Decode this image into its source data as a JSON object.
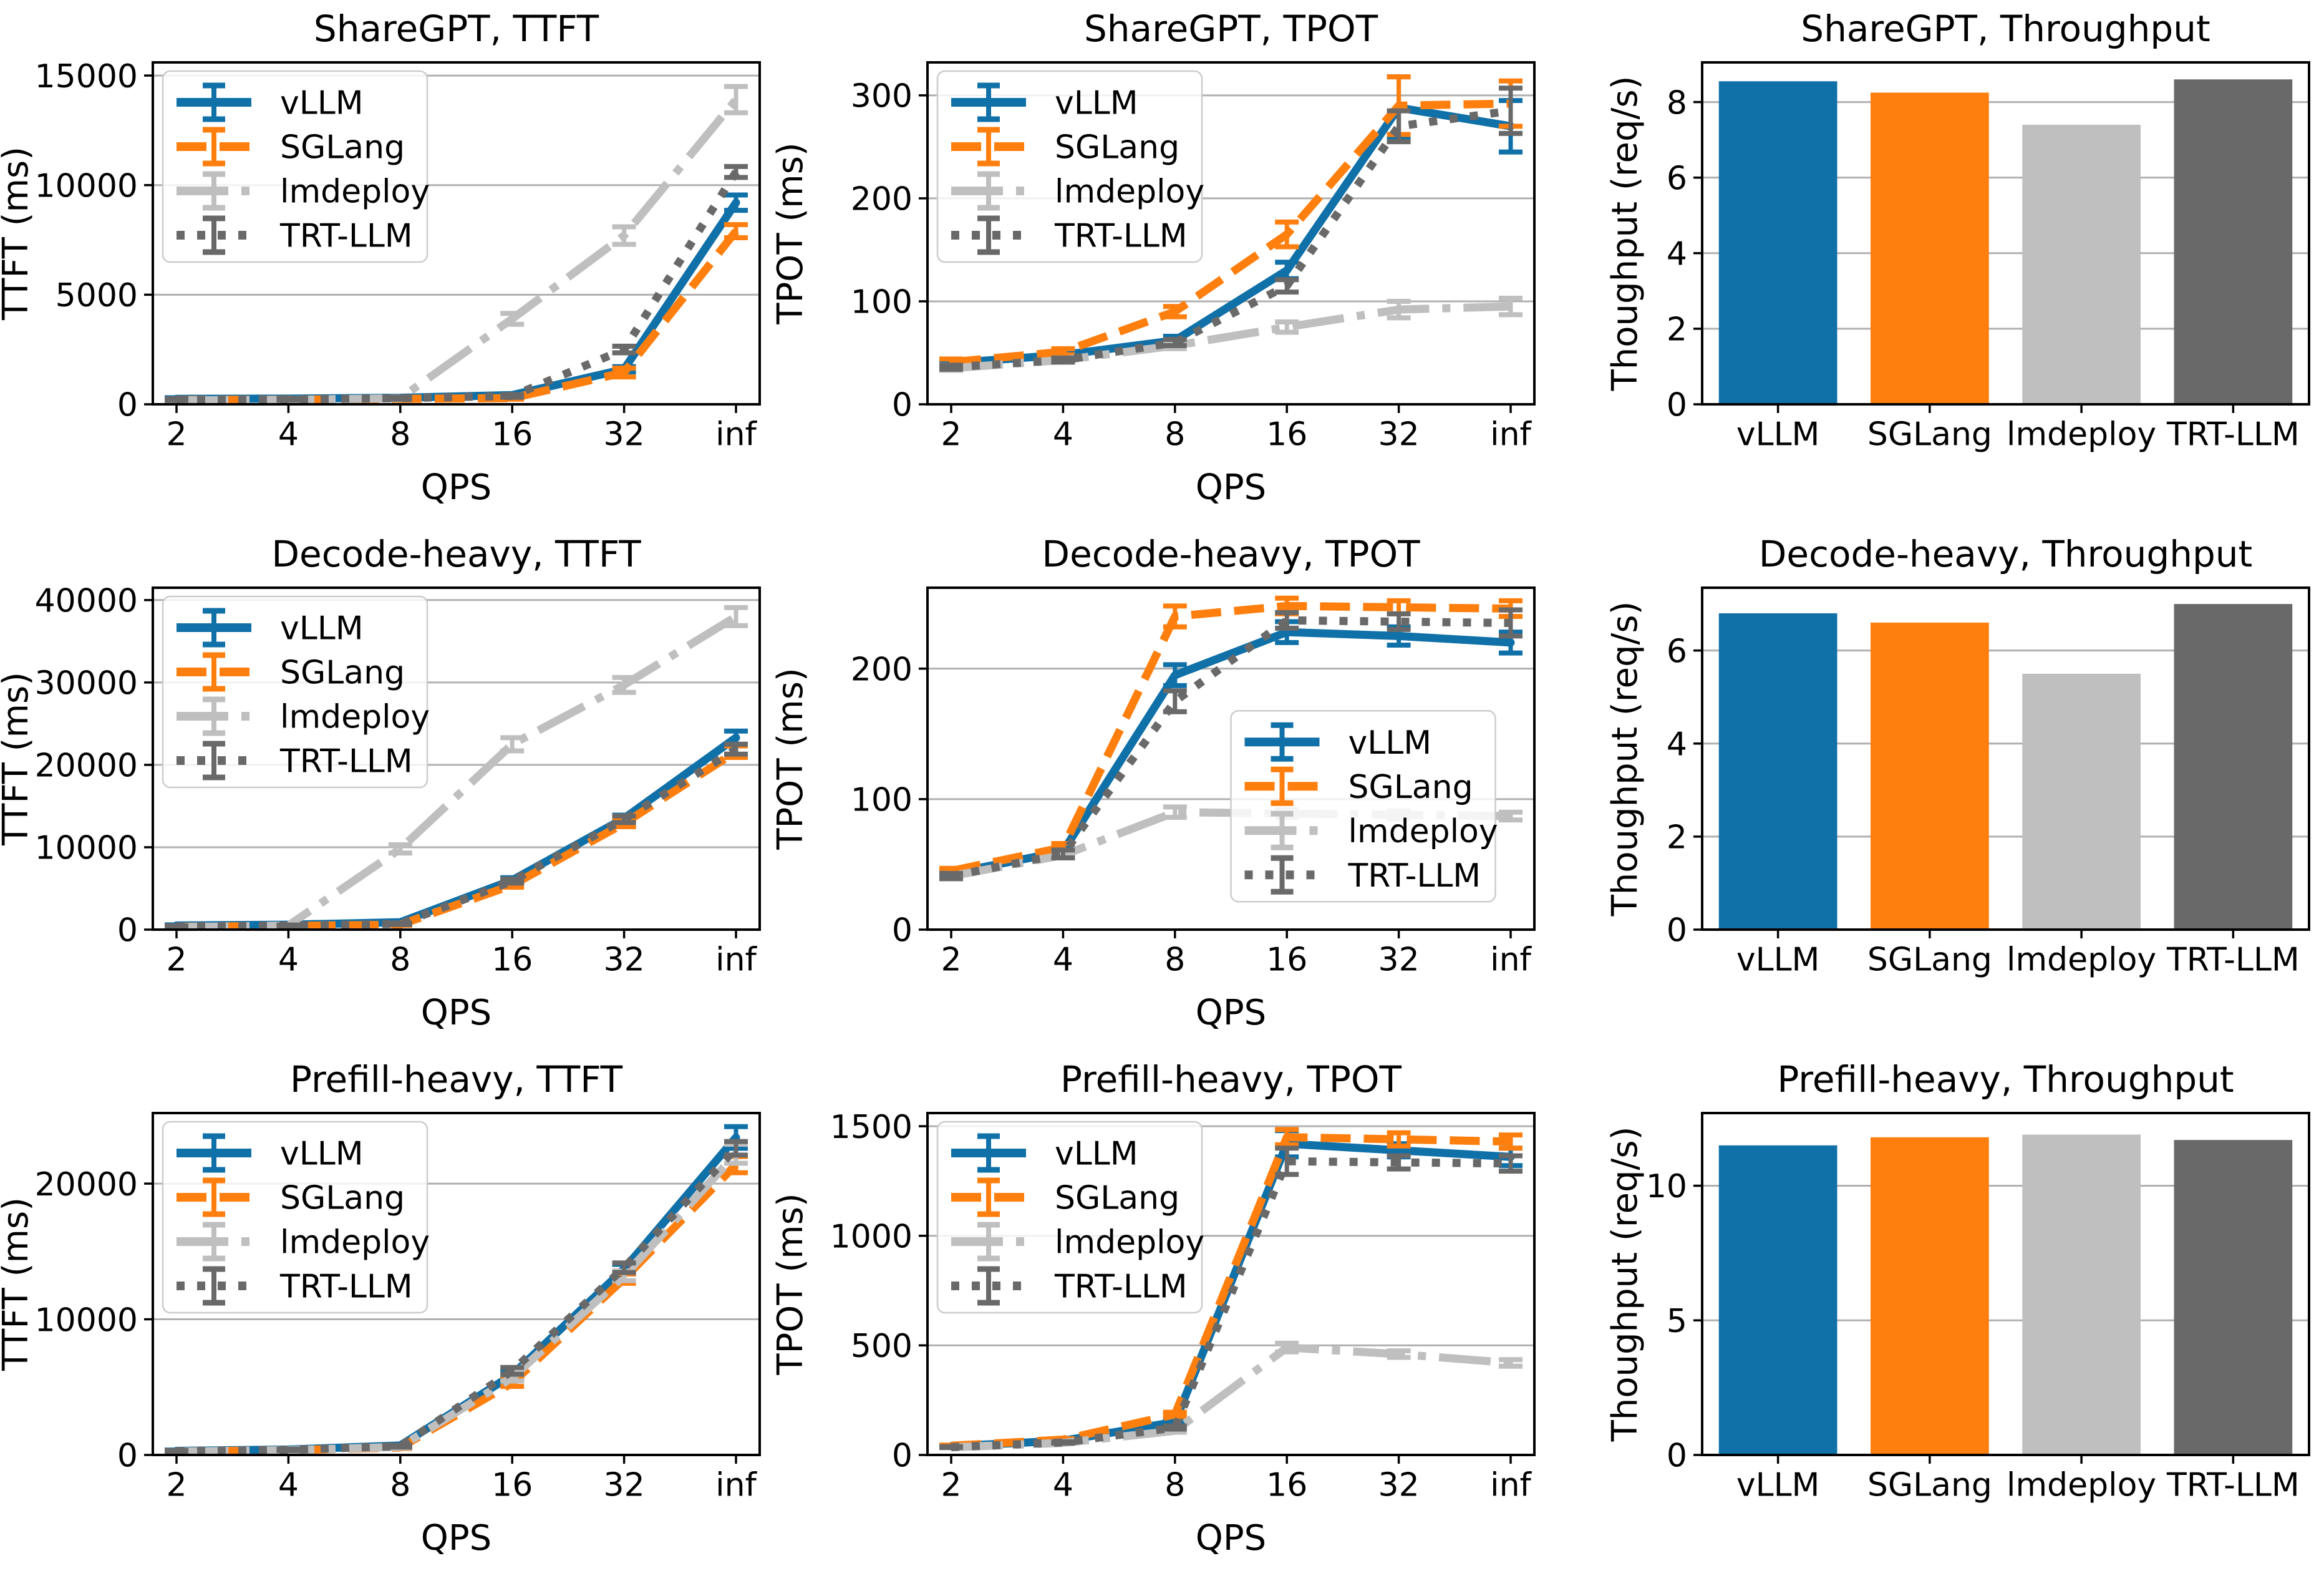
{
  "figure_title": "",
  "series_styles": {
    "vLLM": {
      "color": "#1070a8",
      "dash": "solid"
    },
    "SGLang": {
      "color": "#ff7f0e",
      "dash": "dashed"
    },
    "lmdeploy": {
      "color": "#bfbfbf",
      "dash": "dashdot"
    },
    "TRT-LLM": {
      "color": "#696969",
      "dash": "dotted"
    }
  },
  "legend_labels": [
    "vLLM",
    "SGLang",
    "lmdeploy",
    "TRT-LLM"
  ],
  "chart_data": [
    {
      "type": "line",
      "title": "ShareGPT, TTFT",
      "xlabel": "QPS",
      "ylabel": "TTFT (ms)",
      "x_categories": [
        "2",
        "4",
        "8",
        "16",
        "32",
        "inf"
      ],
      "ylim": [
        0,
        15600
      ],
      "yticks": [
        0,
        5000,
        10000,
        15000
      ],
      "grid": "y",
      "legend": "upper-left",
      "series": [
        {
          "name": "vLLM",
          "values": [
            250,
            260,
            300,
            420,
            1600,
            9200
          ],
          "errors": [
            50,
            50,
            50,
            60,
            120,
            350
          ]
        },
        {
          "name": "SGLang",
          "values": [
            200,
            210,
            250,
            280,
            1450,
            7900
          ],
          "errors": [
            40,
            40,
            40,
            50,
            200,
            300
          ]
        },
        {
          "name": "lmdeploy",
          "values": [
            180,
            200,
            280,
            3900,
            7700,
            13900
          ],
          "errors": [
            40,
            40,
            50,
            250,
            400,
            600
          ]
        },
        {
          "name": "TRT-LLM",
          "values": [
            220,
            230,
            280,
            380,
            2500,
            10600
          ],
          "errors": [
            40,
            40,
            50,
            60,
            150,
            250
          ]
        }
      ]
    },
    {
      "type": "line",
      "title": "ShareGPT, TPOT",
      "xlabel": "QPS",
      "ylabel": "TPOT (ms)",
      "x_categories": [
        "2",
        "4",
        "8",
        "16",
        "32",
        "inf"
      ],
      "ylim": [
        0,
        332
      ],
      "yticks": [
        0,
        100,
        200,
        300
      ],
      "grid": "y",
      "legend": "upper-left",
      "series": [
        {
          "name": "vLLM",
          "values": [
            40,
            48,
            62,
            130,
            288,
            270
          ],
          "errors": [
            3,
            3,
            4,
            8,
            30,
            25
          ]
        },
        {
          "name": "SGLang",
          "values": [
            41,
            51,
            90,
            165,
            290,
            292
          ],
          "errors": [
            3,
            3,
            5,
            12,
            28,
            22
          ]
        },
        {
          "name": "lmdeploy",
          "values": [
            35,
            43,
            57,
            75,
            92,
            95
          ],
          "errors": [
            2,
            2,
            3,
            5,
            8,
            8
          ]
        },
        {
          "name": "TRT-LLM",
          "values": [
            36,
            43,
            60,
            115,
            270,
            285
          ],
          "errors": [
            2,
            2,
            3,
            6,
            15,
            22
          ]
        }
      ]
    },
    {
      "type": "bar",
      "title": "ShareGPT, Throughput",
      "xlabel": "",
      "ylabel": "Thoughput (req/s)",
      "categories": [
        "vLLM",
        "SGLang",
        "lmdeploy",
        "TRT-LLM"
      ],
      "values": [
        8.55,
        8.25,
        7.4,
        8.6
      ],
      "ylim": [
        0,
        9.05
      ],
      "yticks": [
        0,
        2,
        4,
        6,
        8
      ],
      "grid": "y"
    },
    {
      "type": "line",
      "title": "Decode-heavy, TTFT",
      "xlabel": "QPS",
      "ylabel": "TTFT (ms)",
      "x_categories": [
        "2",
        "4",
        "8",
        "16",
        "32",
        "inf"
      ],
      "ylim": [
        0,
        41500
      ],
      "yticks": [
        0,
        10000,
        20000,
        30000,
        40000
      ],
      "grid": "y",
      "legend": "upper-left",
      "series": [
        {
          "name": "vLLM",
          "values": [
            500,
            600,
            900,
            6000,
            13500,
            23300
          ],
          "errors": [
            80,
            80,
            100,
            300,
            400,
            800
          ]
        },
        {
          "name": "SGLang",
          "values": [
            350,
            450,
            600,
            5400,
            12900,
            21600
          ],
          "errors": [
            60,
            60,
            80,
            250,
            400,
            700
          ]
        },
        {
          "name": "lmdeploy",
          "values": [
            300,
            500,
            9800,
            22500,
            29700,
            38000
          ],
          "errors": [
            60,
            80,
            500,
            800,
            900,
            1100
          ]
        },
        {
          "name": "TRT-LLM",
          "values": [
            400,
            500,
            700,
            5900,
            13400,
            21900
          ],
          "errors": [
            60,
            60,
            80,
            250,
            400,
            600
          ]
        }
      ]
    },
    {
      "type": "line",
      "title": "Decode-heavy, TPOT",
      "xlabel": "QPS",
      "ylabel": "TPOT (ms)",
      "x_categories": [
        "2",
        "4",
        "8",
        "16",
        "32",
        "inf"
      ],
      "ylim": [
        0,
        262
      ],
      "yticks": [
        0,
        100,
        200
      ],
      "grid": "y",
      "legend": "center-right",
      "series": [
        {
          "name": "vLLM",
          "values": [
            43,
            60,
            195,
            228,
            225,
            220
          ],
          "errors": [
            2,
            3,
            8,
            8,
            7,
            8
          ]
        },
        {
          "name": "SGLang",
          "values": [
            45,
            63,
            240,
            248,
            247,
            246
          ],
          "errors": [
            2,
            3,
            8,
            6,
            5,
            6
          ]
        },
        {
          "name": "lmdeploy",
          "values": [
            41,
            57,
            90,
            89,
            88,
            87
          ],
          "errors": [
            2,
            2,
            4,
            3,
            3,
            3
          ]
        },
        {
          "name": "TRT-LLM",
          "values": [
            41,
            58,
            175,
            237,
            236,
            235
          ],
          "errors": [
            2,
            3,
            8,
            6,
            6,
            10
          ]
        }
      ]
    },
    {
      "type": "bar",
      "title": "Decode-heavy, Throughput",
      "xlabel": "",
      "ylabel": "Thoughput (req/s)",
      "categories": [
        "vLLM",
        "SGLang",
        "lmdeploy",
        "TRT-LLM"
      ],
      "values": [
        6.8,
        6.6,
        5.5,
        7.0
      ],
      "ylim": [
        0,
        7.35
      ],
      "yticks": [
        0,
        2,
        4,
        6
      ],
      "grid": "y"
    },
    {
      "type": "line",
      "title": "Prefill-heavy, TTFT",
      "xlabel": "QPS",
      "ylabel": "TTFT (ms)",
      "x_categories": [
        "2",
        "4",
        "8",
        "16",
        "32",
        "inf"
      ],
      "ylim": [
        0,
        25200
      ],
      "yticks": [
        0,
        10000,
        20000
      ],
      "grid": "y",
      "legend": "upper-left",
      "series": [
        {
          "name": "vLLM",
          "values": [
            300,
            400,
            700,
            5900,
            13700,
            23400
          ],
          "errors": [
            60,
            60,
            80,
            250,
            350,
            800
          ]
        },
        {
          "name": "SGLang",
          "values": [
            250,
            350,
            550,
            5300,
            13000,
            21400
          ],
          "errors": [
            50,
            50,
            70,
            250,
            350,
            600
          ]
        },
        {
          "name": "lmdeploy",
          "values": [
            250,
            350,
            600,
            5700,
            13200,
            22200
          ],
          "errors": [
            50,
            50,
            70,
            250,
            350,
            700
          ]
        },
        {
          "name": "TRT-LLM",
          "values": [
            280,
            380,
            650,
            6200,
            13800,
            22600
          ],
          "errors": [
            50,
            50,
            70,
            250,
            350,
            500
          ]
        }
      ]
    },
    {
      "type": "line",
      "title": "Prefill-heavy, TPOT",
      "xlabel": "QPS",
      "ylabel": "TPOT (ms)",
      "x_categories": [
        "2",
        "4",
        "8",
        "16",
        "32",
        "inf"
      ],
      "ylim": [
        0,
        1560
      ],
      "yticks": [
        0,
        500,
        1000,
        1500
      ],
      "grid": "y",
      "legend": "upper-left",
      "series": [
        {
          "name": "vLLM",
          "values": [
            40,
            65,
            150,
            1420,
            1390,
            1360
          ],
          "errors": [
            3,
            4,
            8,
            60,
            30,
            40
          ]
        },
        {
          "name": "SGLang",
          "values": [
            42,
            70,
            185,
            1450,
            1440,
            1430
          ],
          "errors": [
            3,
            4,
            10,
            35,
            30,
            30
          ]
        },
        {
          "name": "lmdeploy",
          "values": [
            35,
            55,
            110,
            490,
            460,
            420
          ],
          "errors": [
            2,
            3,
            6,
            20,
            15,
            15
          ]
        },
        {
          "name": "TRT-LLM",
          "values": [
            36,
            57,
            125,
            1340,
            1335,
            1330
          ],
          "errors": [
            2,
            3,
            7,
            60,
            30,
            35
          ]
        }
      ]
    },
    {
      "type": "bar",
      "title": "Prefill-heavy, Throughput",
      "xlabel": "",
      "ylabel": "Thoughput (req/s)",
      "categories": [
        "vLLM",
        "SGLang",
        "lmdeploy",
        "TRT-LLM"
      ],
      "values": [
        11.5,
        11.8,
        11.9,
        11.7
      ],
      "ylim": [
        0,
        12.7
      ],
      "yticks": [
        0,
        5,
        10
      ],
      "grid": "y"
    }
  ]
}
